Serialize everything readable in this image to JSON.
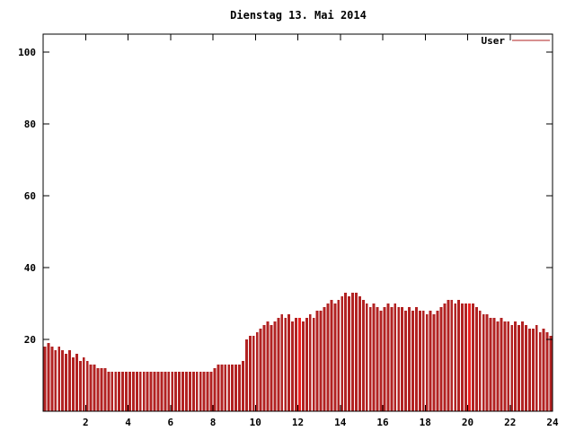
{
  "title": "Dienstag 13. Mai 2014",
  "legend": {
    "label": "User",
    "color": "#b22222"
  },
  "chart_data": {
    "type": "bar",
    "title": "Dienstag 13. Mai 2014",
    "xlabel": "",
    "ylabel": "",
    "x_unit": "hour_of_day",
    "x_start_hour": 0,
    "x_end_hour": 24,
    "interval_minutes": 10,
    "xticks": [
      2,
      4,
      6,
      8,
      10,
      12,
      14,
      16,
      18,
      20,
      22,
      24
    ],
    "yticks": [
      20,
      40,
      60,
      80,
      100
    ],
    "ylim": [
      0,
      105
    ],
    "grid": false,
    "legend_position": "top-right",
    "bar_color": "#b22222",
    "highlight_color": "#ee2222",
    "highlight_indices": [
      72,
      120
    ],
    "series": [
      {
        "name": "User",
        "color": "#b22222",
        "values": [
          18,
          19,
          18,
          17,
          18,
          17,
          16,
          17,
          15,
          16,
          14,
          15,
          14,
          13,
          13,
          12,
          12,
          12,
          11,
          11,
          11,
          11,
          11,
          11,
          11,
          11,
          11,
          11,
          11,
          11,
          11,
          11,
          11,
          11,
          11,
          11,
          11,
          11,
          11,
          11,
          11,
          11,
          11,
          11,
          11,
          11,
          11,
          11,
          12,
          13,
          13,
          13,
          13,
          13,
          13,
          13,
          14,
          20,
          21,
          21,
          22,
          23,
          24,
          25,
          24,
          25,
          26,
          27,
          26,
          27,
          25,
          26,
          26,
          25,
          26,
          27,
          26,
          28,
          28,
          29,
          30,
          31,
          30,
          31,
          32,
          33,
          32,
          33,
          33,
          32,
          31,
          30,
          29,
          30,
          29,
          28,
          29,
          30,
          29,
          30,
          29,
          29,
          28,
          29,
          28,
          29,
          28,
          28,
          27,
          28,
          27,
          28,
          29,
          30,
          31,
          31,
          30,
          31,
          30,
          30,
          30,
          30,
          29,
          28,
          27,
          27,
          26,
          26,
          25,
          26,
          25,
          25,
          24,
          25,
          24,
          25,
          24,
          23,
          23,
          24,
          22,
          23,
          22,
          21
        ]
      }
    ]
  }
}
